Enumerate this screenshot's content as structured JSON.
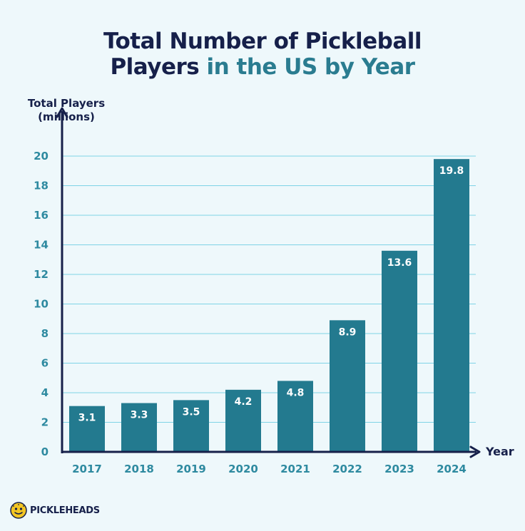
{
  "title": {
    "line1": "Total Number of Pickleball",
    "line2_dark": "Players",
    "line2_teal": "in the US by Year"
  },
  "logo": {
    "text": "PICKLEHEADS"
  },
  "colors": {
    "bar": "#237a8f",
    "grid": "#7ed3e6",
    "axis": "#16204a",
    "tick_label": "#2e8aa0",
    "dark_text": "#16204a",
    "teal_text": "#2a7c90",
    "background": "#eef8fb"
  },
  "chart_data": {
    "type": "bar",
    "title": "Total Number of Pickleball Players in the US by Year",
    "xlabel": "Year",
    "ylabel": "Total Players (millions)",
    "categories": [
      "2017",
      "2018",
      "2019",
      "2020",
      "2021",
      "2022",
      "2023",
      "2024"
    ],
    "values": [
      3.1,
      3.3,
      3.5,
      4.2,
      4.8,
      8.9,
      13.6,
      19.8
    ],
    "value_labels": [
      "3.1",
      "3.3",
      "3.5",
      "4.2",
      "4.8",
      "8.9",
      "13.6",
      "19.8"
    ],
    "ylim": [
      0,
      20
    ],
    "yticks": [
      0,
      2,
      4,
      6,
      8,
      10,
      12,
      14,
      16,
      18,
      20
    ],
    "grid": true
  }
}
